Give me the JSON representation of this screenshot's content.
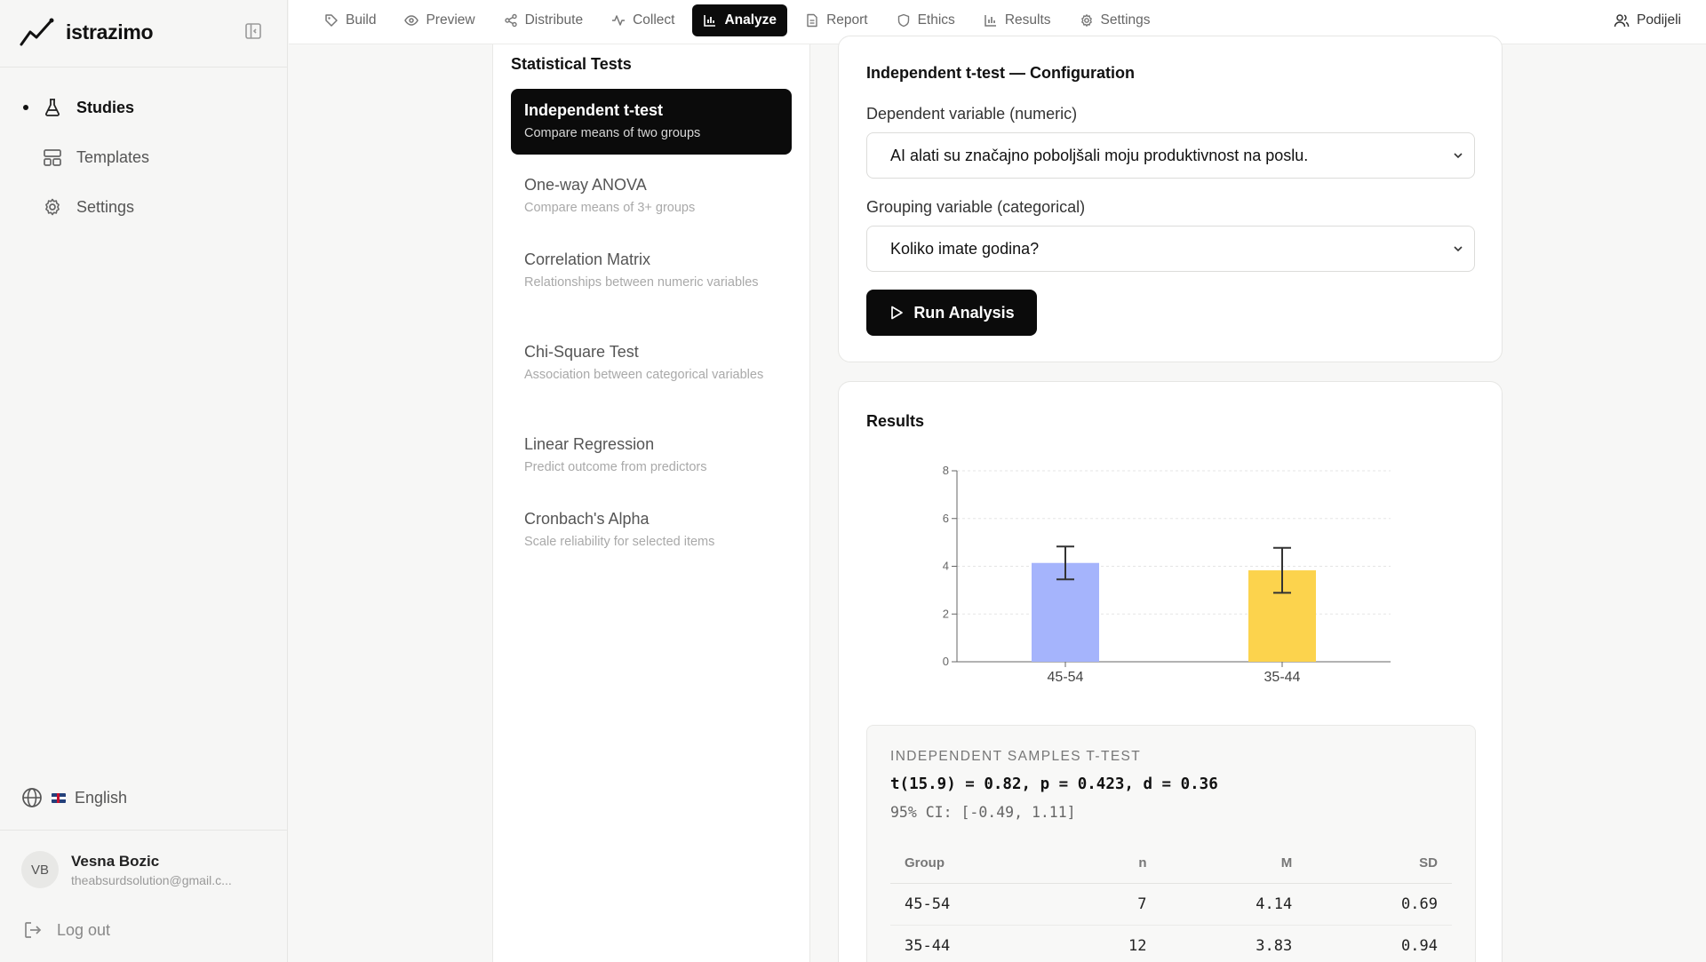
{
  "sidebar": {
    "brand": "istrazimo",
    "items": [
      {
        "label": "Studies",
        "icon": "flask-icon",
        "active": true
      },
      {
        "label": "Templates",
        "icon": "templates-icon",
        "active": false
      },
      {
        "label": "Settings",
        "icon": "gear-icon",
        "active": false
      }
    ],
    "language": "English",
    "user": {
      "initials": "VB",
      "name": "Vesna Bozic",
      "email": "theabsurdsolution@gmail.c..."
    },
    "logout": "Log out"
  },
  "topbar": {
    "tabs": [
      {
        "label": "Build",
        "icon": "tag-icon"
      },
      {
        "label": "Preview",
        "icon": "eye-icon"
      },
      {
        "label": "Distribute",
        "icon": "share-nodes-icon"
      },
      {
        "label": "Collect",
        "icon": "activity-icon"
      },
      {
        "label": "Analyze",
        "icon": "bar-chart-icon",
        "active": true
      },
      {
        "label": "Report",
        "icon": "document-icon"
      },
      {
        "label": "Ethics",
        "icon": "shield-icon"
      },
      {
        "label": "Results",
        "icon": "bar-chart-icon"
      },
      {
        "label": "Settings",
        "icon": "gear-icon"
      }
    ],
    "share": "Podijeli"
  },
  "tests": {
    "title": "Statistical Tests",
    "items": [
      {
        "name": "Independent t-test",
        "desc": "Compare means of two groups",
        "active": true
      },
      {
        "name": "One-way ANOVA",
        "desc": "Compare means of 3+ groups"
      },
      {
        "name": "Correlation Matrix",
        "desc": "Relationships between numeric variables"
      },
      {
        "name": "Chi-Square Test",
        "desc": "Association between categorical variables"
      },
      {
        "name": "Linear Regression",
        "desc": "Predict outcome from predictors"
      },
      {
        "name": "Cronbach's Alpha",
        "desc": "Scale reliability for selected items"
      }
    ]
  },
  "config": {
    "title": "Independent t-test — Configuration",
    "dependent_label": "Dependent variable (numeric)",
    "dependent_value": "AI alati su značajno poboljšali moju produktivnost na poslu.",
    "grouping_label": "Grouping variable (categorical)",
    "grouping_value": "Koliko imate godina?",
    "run_label": "Run Analysis"
  },
  "results": {
    "title": "Results",
    "stats_heading": "INDEPENDENT SAMPLES T-TEST",
    "stats_main": "t(15.9) = 0.82, p = 0.423, d = 0.36",
    "stats_ci": "95% CI: [-0.49, 1.11]",
    "columns": [
      "Group",
      "n",
      "M",
      "SD"
    ],
    "rows": [
      [
        "45-54",
        "7",
        "4.14",
        "0.69"
      ],
      [
        "35-44",
        "12",
        "3.83",
        "0.94"
      ]
    ]
  },
  "chart_data": {
    "type": "bar",
    "categories": [
      "45-54",
      "35-44"
    ],
    "values": [
      4.14,
      3.83
    ],
    "error_low": [
      3.45,
      2.89
    ],
    "error_high": [
      4.83,
      4.77
    ],
    "colors": [
      "#a5b4fc",
      "#fcd34d"
    ],
    "yticks": [
      0,
      2,
      4,
      6,
      8
    ],
    "ylim": [
      0,
      8
    ],
    "grid": true
  }
}
